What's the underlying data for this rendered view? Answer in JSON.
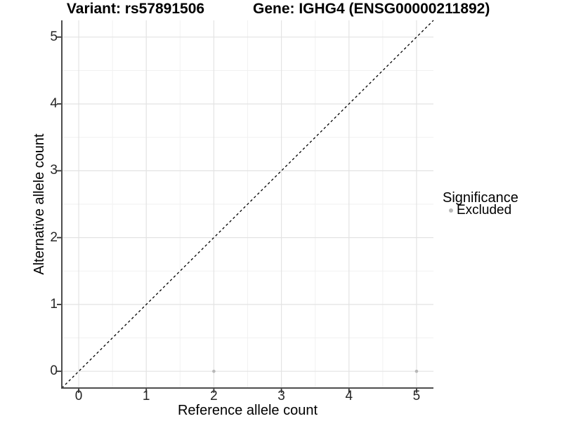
{
  "chart_data": {
    "type": "scatter",
    "title_left": "Variant: rs57891506",
    "title_right": "Gene: IGHG4 (ENSG00000211892)",
    "xlabel": "Reference allele count",
    "ylabel": "Alternative allele count",
    "xlim": [
      -0.25,
      5.25
    ],
    "ylim": [
      -0.25,
      5.25
    ],
    "x_ticks": [
      0,
      1,
      2,
      3,
      4,
      5
    ],
    "y_ticks": [
      0,
      1,
      2,
      3,
      4,
      5
    ],
    "grid": {
      "major": true,
      "minor": true
    },
    "reference_line": {
      "type": "identity y=x",
      "style": "dashed",
      "color": "#000000"
    },
    "series": [
      {
        "name": "Excluded",
        "color": "#b8b8b8",
        "points": [
          {
            "x": 2,
            "y": 0
          },
          {
            "x": 5,
            "y": 0
          }
        ]
      }
    ],
    "legend": {
      "title": "Significance",
      "position": "right",
      "entries": [
        {
          "label": "Excluded",
          "color": "#b8b8b8"
        }
      ]
    }
  },
  "colors": {
    "grid_major": "#e3e3e3",
    "grid_minor": "#f1f1f1",
    "axis_line": "#4d4d4d",
    "tick_mark": "#333333",
    "tick_text": "#262626",
    "point": "#b8b8b8"
  }
}
